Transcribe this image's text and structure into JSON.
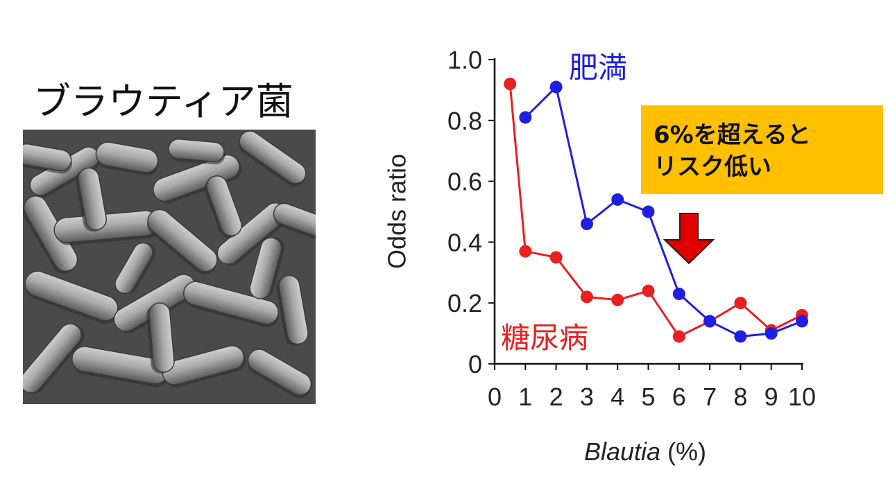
{
  "panel": {
    "title": "ブラウティア菌"
  },
  "annotation": {
    "line1": "6%を超えると",
    "line2": "リスク低い",
    "box_color": "#ffc000",
    "arrow_color": "#e00000"
  },
  "chart_data": {
    "type": "line",
    "xlabel_italic": "Blautia",
    "xlabel_unit": " (%)",
    "ylabel": "Odds ratio",
    "xlim": [
      0,
      10
    ],
    "ylim": [
      0,
      1.0
    ],
    "x_ticks": [
      "0",
      "1",
      "2",
      "3",
      "4",
      "5",
      "6",
      "7",
      "8",
      "9",
      "10"
    ],
    "y_ticks": [
      "0",
      "0.2",
      "0.4",
      "0.6",
      "0.8",
      "1.0"
    ],
    "series": [
      {
        "name": "肥満",
        "color": "#1f1fe0",
        "x": [
          1,
          2,
          3,
          4,
          5,
          6,
          7,
          8,
          9,
          10
        ],
        "y": [
          0.81,
          0.91,
          0.46,
          0.54,
          0.5,
          0.23,
          0.14,
          0.09,
          0.1,
          0.14
        ]
      },
      {
        "name": "糖尿病",
        "color": "#e82020",
        "x": [
          0.5,
          1,
          2,
          3,
          4,
          5,
          6,
          7,
          8,
          9,
          10
        ],
        "y": [
          0.92,
          0.37,
          0.35,
          0.22,
          0.21,
          0.24,
          0.09,
          0.14,
          0.2,
          0.11,
          0.16
        ]
      }
    ]
  }
}
